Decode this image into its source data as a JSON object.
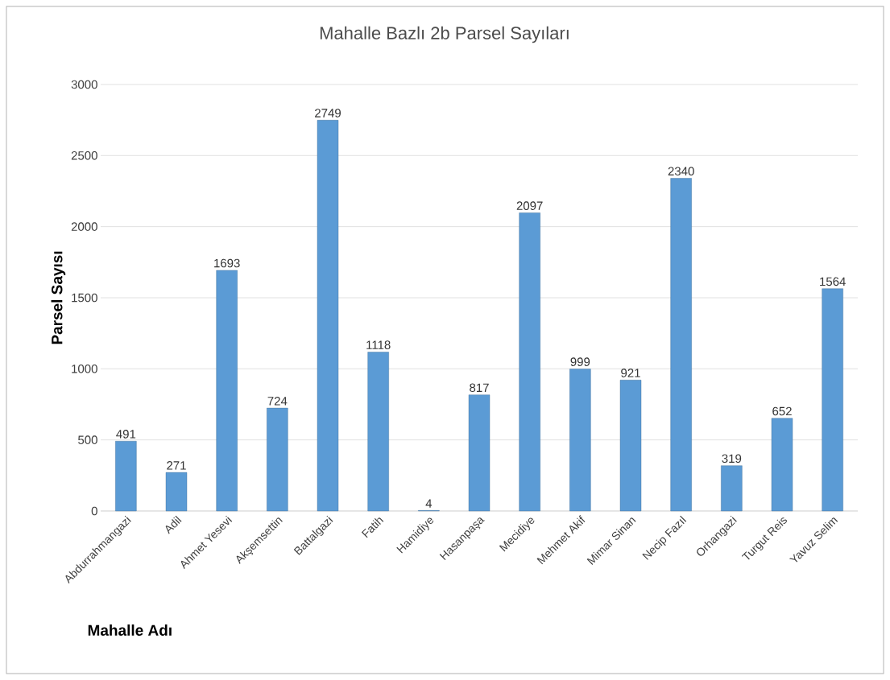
{
  "chart_data": {
    "type": "bar",
    "title": "Mahalle Bazlı 2b Parsel Sayıları",
    "xlabel": "Mahalle Adı",
    "ylabel": "Parsel Sayısı",
    "categories": [
      "Abdurrahmangazi",
      "Adil",
      "Ahmet Yesevi",
      "Akşemsettin",
      "Battalgazi",
      "Fatih",
      "Hamidiye",
      "Hasanpaşa",
      "Mecidiye",
      "Mehmet Akif",
      "Mimar Sinan",
      "Necip Fazıl",
      "Orhangazi",
      "Turgut Reis",
      "Yavuz Selim"
    ],
    "values": [
      491,
      271,
      1693,
      724,
      2749,
      1118,
      4,
      817,
      2097,
      999,
      921,
      2340,
      319,
      652,
      1564
    ],
    "color": "#5b9bd5",
    "ylim": [
      0,
      3000
    ],
    "yticks": [
      0,
      500,
      1000,
      1500,
      2000,
      2500,
      3000
    ],
    "grid": "y",
    "data_labels": true
  }
}
